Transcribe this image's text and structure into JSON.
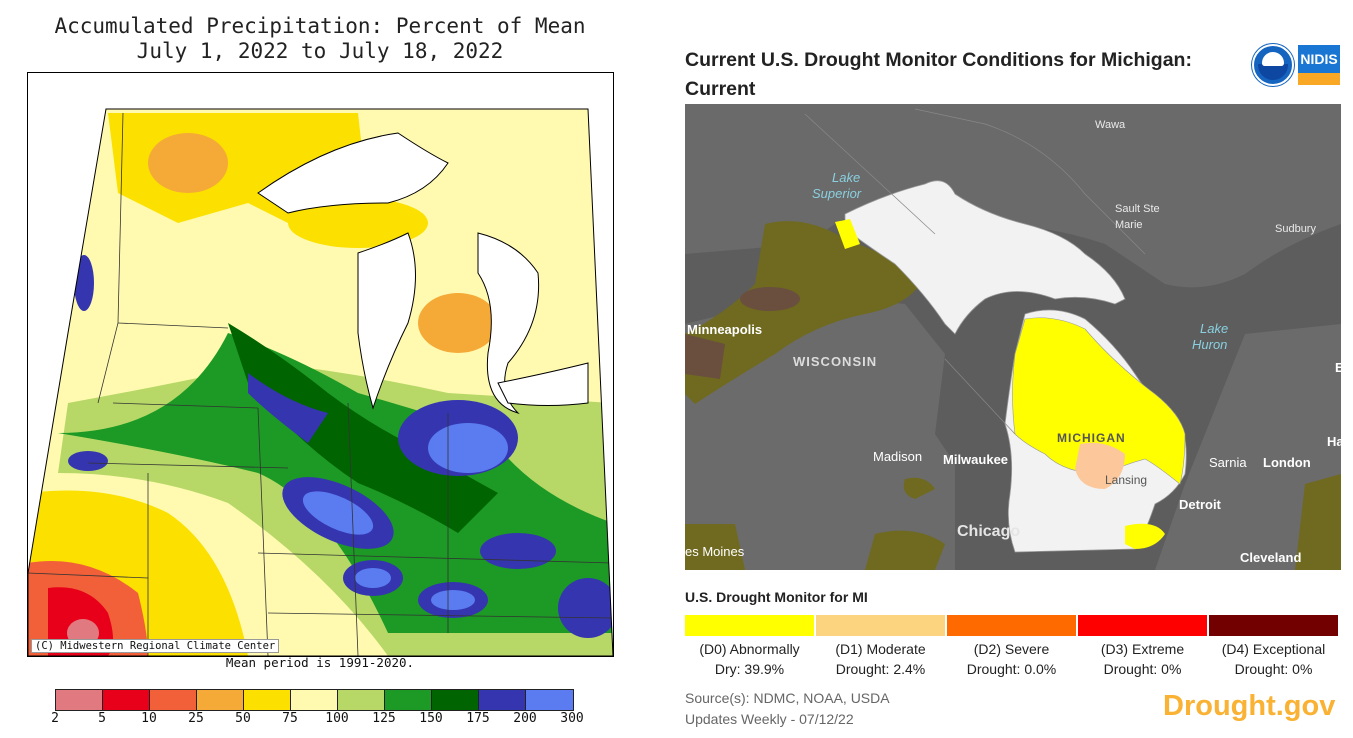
{
  "precip": {
    "title_line1": "Accumulated Precipitation: Percent of Mean",
    "title_line2": "July 1, 2022 to July 18, 2022",
    "credit": "(C) Midwestern Regional Climate Center",
    "mean_period": "Mean period is 1991-2020.",
    "scale_colors": [
      "#e07a80",
      "#e8001a",
      "#f2603a",
      "#f5aa38",
      "#fbe000",
      "#fffab0",
      "#b7d867",
      "#1c9a25",
      "#006400",
      "#3535b0",
      "#5a7cf0"
    ],
    "scale_ticks": [
      "2",
      "5",
      "10",
      "25",
      "50",
      "75",
      "100",
      "125",
      "150",
      "175",
      "200",
      "300"
    ]
  },
  "drought": {
    "title": "Current U.S. Drought Monitor Conditions for Michigan: Current",
    "logo_noaa": "noaa-logo",
    "logo_nidis": "NIDIS",
    "map_labels": {
      "wawa": "Wawa",
      "lake_superior_1": "Lake",
      "lake_superior_2": "Superior",
      "sault_1": "Sault Ste",
      "sault_2": "Marie",
      "sudbury": "Sudbury",
      "minneapolis": "Minneapolis",
      "wisconsin": "WISCONSIN",
      "lake_huron_1": "Lake",
      "lake_huron_2": "Huron",
      "michigan": "MICHIGAN",
      "madison": "Madison",
      "milwaukee": "Milwaukee",
      "lansing": "Lansing",
      "sarnia": "Sarnia",
      "london": "London",
      "ha": "Ha",
      "detroit": "Detroit",
      "chicago": "Chicago",
      "des_moines": "es Moines",
      "cleveland": "Cleveland",
      "edge_e": "E"
    },
    "legend_title": "U.S. Drought Monitor for MI",
    "legend": [
      {
        "line1": "(D0) Abnormally",
        "line2": "Dry: 39.9%",
        "color": "#ffff00"
      },
      {
        "line1": "(D1) Moderate",
        "line2": "Drought: 2.4%",
        "color": "#fcd37f"
      },
      {
        "line1": "(D2) Severe",
        "line2": "Drought: 0.0%",
        "color": "#ff6a00"
      },
      {
        "line1": "(D3) Extreme",
        "line2": "Drought: 0%",
        "color": "#ff0000"
      },
      {
        "line1": "(D4) Exceptional",
        "line2": "Drought: 0%",
        "color": "#730000"
      }
    ],
    "source_line1": "Source(s): NDMC, NOAA, USDA",
    "source_line2": "Updates Weekly - 07/12/22",
    "brand": "Drought.gov"
  }
}
